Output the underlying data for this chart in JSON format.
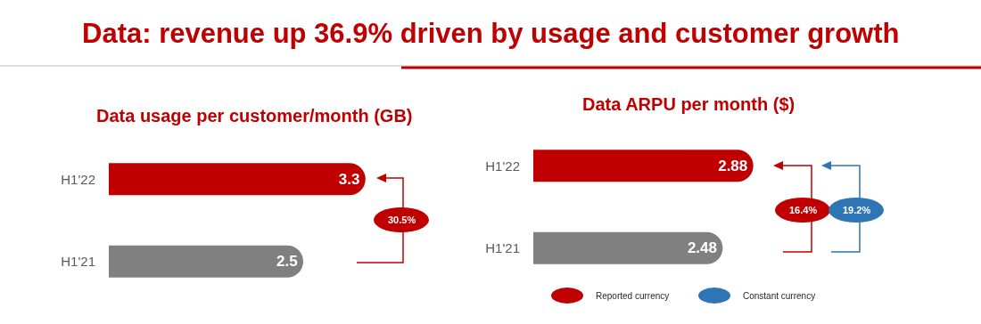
{
  "chart_data": [
    {
      "type": "bar",
      "orientation": "horizontal",
      "title": "Data: revenue up 36.9% driven by usage and customer growth",
      "subtitle": "Data usage per customer/month (GB)",
      "categories": [
        "H1'22",
        "H1'21"
      ],
      "values": [
        3.3,
        2.5
      ],
      "colors": [
        "#c00000",
        "#808080"
      ],
      "data_labels": true,
      "tick_labels": "y",
      "annotations": [
        "30.5%"
      ]
    },
    {
      "type": "bar",
      "orientation": "horizontal",
      "subtitle": "Data ARPU per month ($)",
      "categories": [
        "H1'22",
        "H1'21"
      ],
      "values": [
        2.88,
        2.48
      ],
      "colors": [
        "#c00000",
        "#808080"
      ],
      "data_labels": true,
      "tick_labels": "y",
      "annotations": [
        "16.4%",
        "19.2%",
        "Reported currency",
        "Constant currency"
      ]
    }
  ]
}
